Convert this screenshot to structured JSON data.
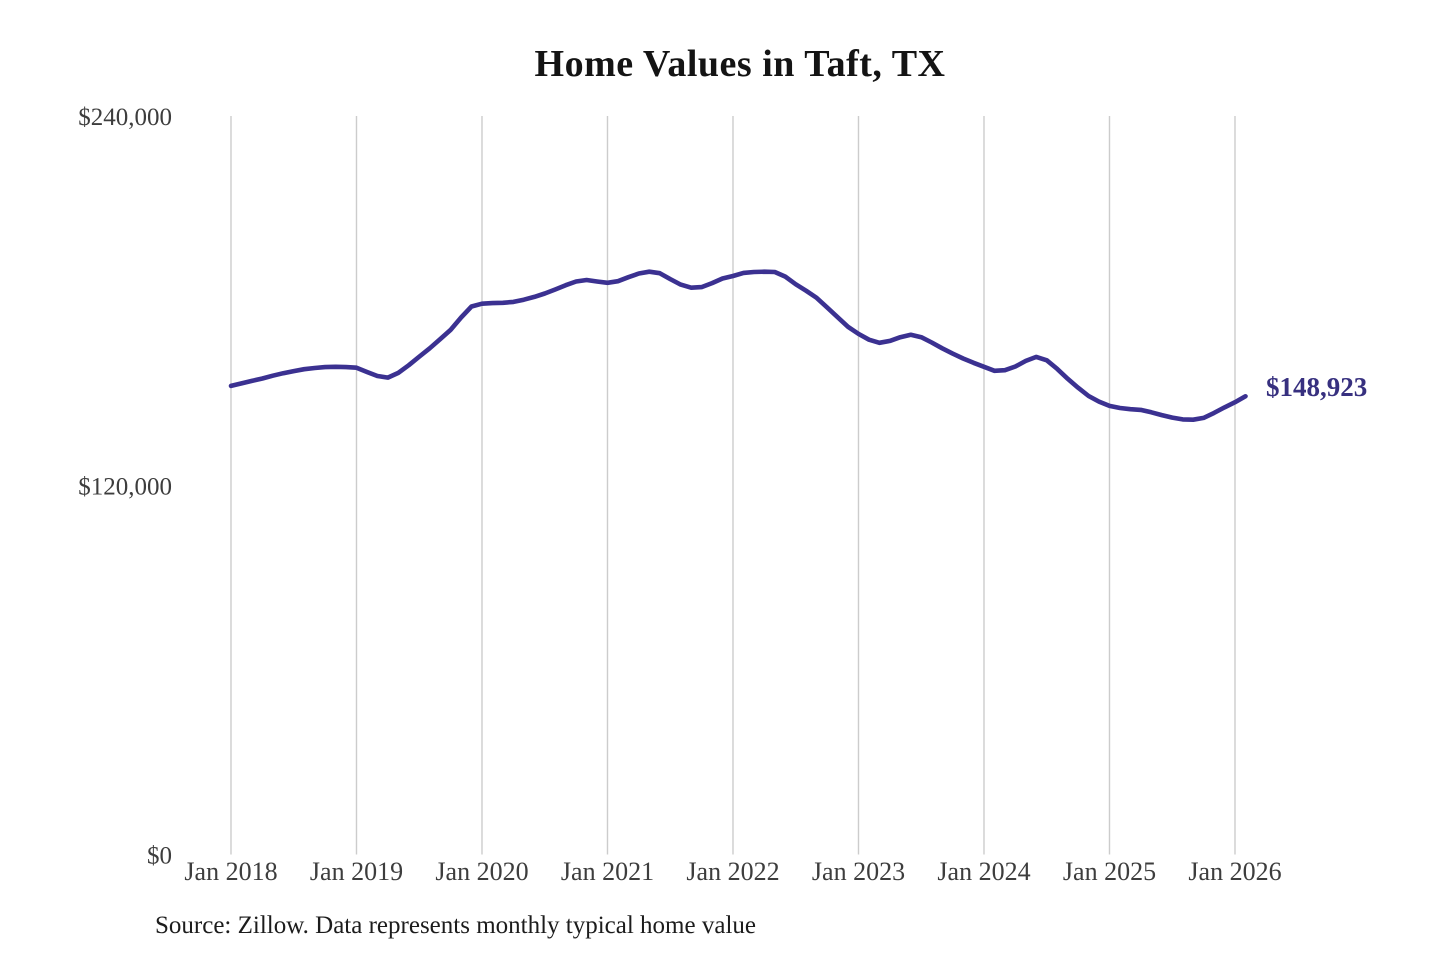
{
  "chart_data": {
    "type": "line",
    "title": "Home Values in Taft, TX",
    "xlabel": "",
    "ylabel": "",
    "ylim": [
      0,
      240000
    ],
    "grid": "vertical-only",
    "legend": "none",
    "x_tick_labels": [
      "Jan 2018",
      "Jan 2019",
      "Jan 2020",
      "Jan 2021",
      "Jan 2022",
      "Jan 2023",
      "Jan 2024",
      "Jan 2025",
      "Jan 2026"
    ],
    "y_ticks": [
      {
        "value": 0,
        "label": "$0"
      },
      {
        "value": 120000,
        "label": "$120,000"
      },
      {
        "value": 240000,
        "label": "$240,000"
      }
    ],
    "series": [
      {
        "name": "Typical home value",
        "start": "2018-01",
        "frequency": "monthly",
        "values": [
          152300,
          153100,
          153900,
          154700,
          155600,
          156400,
          157100,
          157700,
          158100,
          158400,
          158500,
          158400,
          158200,
          156800,
          155500,
          155000,
          156500,
          159000,
          161800,
          164500,
          167500,
          170500,
          174500,
          178100,
          179000,
          179200,
          179300,
          179600,
          180300,
          181200,
          182300,
          183600,
          185000,
          186200,
          186700,
          186200,
          185800,
          186300,
          187600,
          188800,
          189400,
          188900,
          187000,
          185200,
          184200,
          184400,
          185700,
          187200,
          188000,
          189000,
          189300,
          189400,
          189300,
          187800,
          185300,
          183200,
          180900,
          177800,
          174600,
          171500,
          169200,
          167300,
          166300,
          166900,
          168100,
          168900,
          168100,
          166400,
          164500,
          162800,
          161200,
          159800,
          158500,
          157200,
          157400,
          158600,
          160400,
          161700,
          160600,
          157800,
          154600,
          151700,
          149000,
          147200,
          145800,
          145100,
          144700,
          144500,
          143700,
          142800,
          142000,
          141400,
          141300,
          141900,
          143500,
          145300,
          147000,
          148923
        ]
      }
    ],
    "end_value": 148923,
    "end_label": "$148,923",
    "source_note": "Source: Zillow. Data represents monthly typical home value"
  },
  "colors": {
    "line": "#3b3191",
    "end_label": "#37307f",
    "grid": "#cccccc",
    "tick_text": "#3d3d3d",
    "title_text": "#141414",
    "source_text": "#1c1c1c",
    "background": "#ffffff"
  }
}
